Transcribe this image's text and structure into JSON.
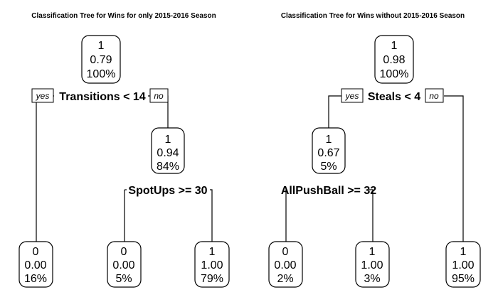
{
  "trees": [
    {
      "title": "Classification Tree for Wins for only 2015-2016 Season",
      "yes_label": "yes",
      "no_label": "no",
      "root": {
        "cls": "1",
        "prob": "0.79",
        "pct": "100%"
      },
      "split1": "Transitions < 14",
      "left_leaf": {
        "cls": "0",
        "prob": "0.00",
        "pct": "16%"
      },
      "internal": {
        "cls": "1",
        "prob": "0.94",
        "pct": "84%"
      },
      "split2": "SpotUps >= 30",
      "leaf_a": {
        "cls": "0",
        "prob": "0.00",
        "pct": "5%"
      },
      "leaf_b": {
        "cls": "1",
        "prob": "1.00",
        "pct": "79%"
      }
    },
    {
      "title": "Classification Tree for Wins without 2015-2016 Season",
      "yes_label": "yes",
      "no_label": "no",
      "root": {
        "cls": "1",
        "prob": "0.98",
        "pct": "100%"
      },
      "split1": "Steals < 4",
      "internal": {
        "cls": "1",
        "prob": "0.67",
        "pct": "5%"
      },
      "split2": "AllPushBall >= 32",
      "leaf_a": {
        "cls": "0",
        "prob": "0.00",
        "pct": "2%"
      },
      "leaf_b": {
        "cls": "1",
        "prob": "1.00",
        "pct": "3%"
      },
      "right_leaf": {
        "cls": "1",
        "prob": "1.00",
        "pct": "95%"
      }
    }
  ]
}
